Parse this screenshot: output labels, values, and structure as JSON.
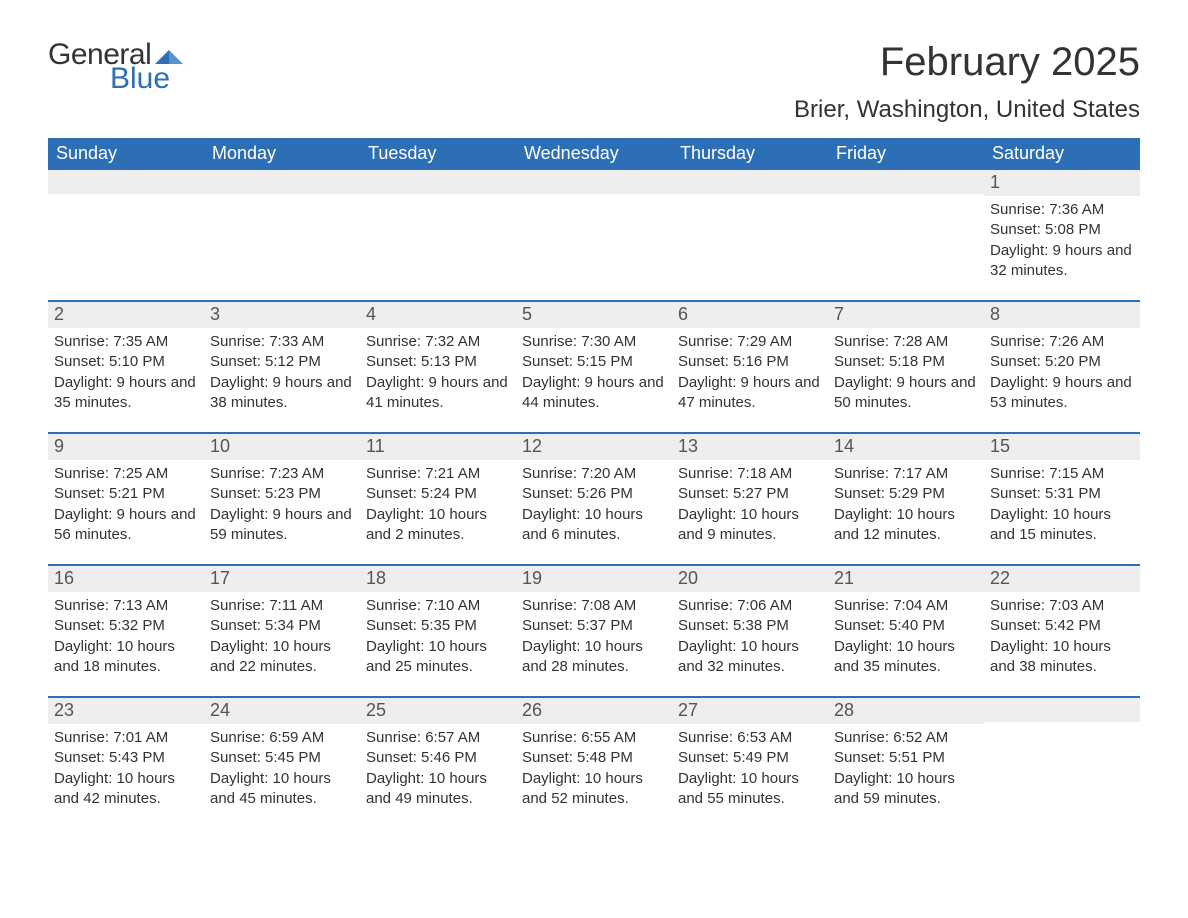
{
  "logo": {
    "text_general": "General",
    "text_blue": "Blue",
    "mark_color": "#2d6fb5"
  },
  "header": {
    "title": "February 2025",
    "subtitle": "Brier, Washington, United States"
  },
  "colors": {
    "header_row_bg": "#2d6fb5",
    "header_row_fg": "#ffffff",
    "week_separator": "#2d6fb5",
    "daynum_bg": "#eeeeee",
    "daynum_fg": "#555555",
    "body_text": "#333333",
    "page_bg": "#ffffff"
  },
  "calendar": {
    "day_names": [
      "Sunday",
      "Monday",
      "Tuesday",
      "Wednesday",
      "Thursday",
      "Friday",
      "Saturday"
    ],
    "weeks": [
      [
        {
          "day": "",
          "sunrise": "",
          "sunset": "",
          "daylight": ""
        },
        {
          "day": "",
          "sunrise": "",
          "sunset": "",
          "daylight": ""
        },
        {
          "day": "",
          "sunrise": "",
          "sunset": "",
          "daylight": ""
        },
        {
          "day": "",
          "sunrise": "",
          "sunset": "",
          "daylight": ""
        },
        {
          "day": "",
          "sunrise": "",
          "sunset": "",
          "daylight": ""
        },
        {
          "day": "",
          "sunrise": "",
          "sunset": "",
          "daylight": ""
        },
        {
          "day": "1",
          "sunrise": "Sunrise: 7:36 AM",
          "sunset": "Sunset: 5:08 PM",
          "daylight": "Daylight: 9 hours and 32 minutes."
        }
      ],
      [
        {
          "day": "2",
          "sunrise": "Sunrise: 7:35 AM",
          "sunset": "Sunset: 5:10 PM",
          "daylight": "Daylight: 9 hours and 35 minutes."
        },
        {
          "day": "3",
          "sunrise": "Sunrise: 7:33 AM",
          "sunset": "Sunset: 5:12 PM",
          "daylight": "Daylight: 9 hours and 38 minutes."
        },
        {
          "day": "4",
          "sunrise": "Sunrise: 7:32 AM",
          "sunset": "Sunset: 5:13 PM",
          "daylight": "Daylight: 9 hours and 41 minutes."
        },
        {
          "day": "5",
          "sunrise": "Sunrise: 7:30 AM",
          "sunset": "Sunset: 5:15 PM",
          "daylight": "Daylight: 9 hours and 44 minutes."
        },
        {
          "day": "6",
          "sunrise": "Sunrise: 7:29 AM",
          "sunset": "Sunset: 5:16 PM",
          "daylight": "Daylight: 9 hours and 47 minutes."
        },
        {
          "day": "7",
          "sunrise": "Sunrise: 7:28 AM",
          "sunset": "Sunset: 5:18 PM",
          "daylight": "Daylight: 9 hours and 50 minutes."
        },
        {
          "day": "8",
          "sunrise": "Sunrise: 7:26 AM",
          "sunset": "Sunset: 5:20 PM",
          "daylight": "Daylight: 9 hours and 53 minutes."
        }
      ],
      [
        {
          "day": "9",
          "sunrise": "Sunrise: 7:25 AM",
          "sunset": "Sunset: 5:21 PM",
          "daylight": "Daylight: 9 hours and 56 minutes."
        },
        {
          "day": "10",
          "sunrise": "Sunrise: 7:23 AM",
          "sunset": "Sunset: 5:23 PM",
          "daylight": "Daylight: 9 hours and 59 minutes."
        },
        {
          "day": "11",
          "sunrise": "Sunrise: 7:21 AM",
          "sunset": "Sunset: 5:24 PM",
          "daylight": "Daylight: 10 hours and 2 minutes."
        },
        {
          "day": "12",
          "sunrise": "Sunrise: 7:20 AM",
          "sunset": "Sunset: 5:26 PM",
          "daylight": "Daylight: 10 hours and 6 minutes."
        },
        {
          "day": "13",
          "sunrise": "Sunrise: 7:18 AM",
          "sunset": "Sunset: 5:27 PM",
          "daylight": "Daylight: 10 hours and 9 minutes."
        },
        {
          "day": "14",
          "sunrise": "Sunrise: 7:17 AM",
          "sunset": "Sunset: 5:29 PM",
          "daylight": "Daylight: 10 hours and 12 minutes."
        },
        {
          "day": "15",
          "sunrise": "Sunrise: 7:15 AM",
          "sunset": "Sunset: 5:31 PM",
          "daylight": "Daylight: 10 hours and 15 minutes."
        }
      ],
      [
        {
          "day": "16",
          "sunrise": "Sunrise: 7:13 AM",
          "sunset": "Sunset: 5:32 PM",
          "daylight": "Daylight: 10 hours and 18 minutes."
        },
        {
          "day": "17",
          "sunrise": "Sunrise: 7:11 AM",
          "sunset": "Sunset: 5:34 PM",
          "daylight": "Daylight: 10 hours and 22 minutes."
        },
        {
          "day": "18",
          "sunrise": "Sunrise: 7:10 AM",
          "sunset": "Sunset: 5:35 PM",
          "daylight": "Daylight: 10 hours and 25 minutes."
        },
        {
          "day": "19",
          "sunrise": "Sunrise: 7:08 AM",
          "sunset": "Sunset: 5:37 PM",
          "daylight": "Daylight: 10 hours and 28 minutes."
        },
        {
          "day": "20",
          "sunrise": "Sunrise: 7:06 AM",
          "sunset": "Sunset: 5:38 PM",
          "daylight": "Daylight: 10 hours and 32 minutes."
        },
        {
          "day": "21",
          "sunrise": "Sunrise: 7:04 AM",
          "sunset": "Sunset: 5:40 PM",
          "daylight": "Daylight: 10 hours and 35 minutes."
        },
        {
          "day": "22",
          "sunrise": "Sunrise: 7:03 AM",
          "sunset": "Sunset: 5:42 PM",
          "daylight": "Daylight: 10 hours and 38 minutes."
        }
      ],
      [
        {
          "day": "23",
          "sunrise": "Sunrise: 7:01 AM",
          "sunset": "Sunset: 5:43 PM",
          "daylight": "Daylight: 10 hours and 42 minutes."
        },
        {
          "day": "24",
          "sunrise": "Sunrise: 6:59 AM",
          "sunset": "Sunset: 5:45 PM",
          "daylight": "Daylight: 10 hours and 45 minutes."
        },
        {
          "day": "25",
          "sunrise": "Sunrise: 6:57 AM",
          "sunset": "Sunset: 5:46 PM",
          "daylight": "Daylight: 10 hours and 49 minutes."
        },
        {
          "day": "26",
          "sunrise": "Sunrise: 6:55 AM",
          "sunset": "Sunset: 5:48 PM",
          "daylight": "Daylight: 10 hours and 52 minutes."
        },
        {
          "day": "27",
          "sunrise": "Sunrise: 6:53 AM",
          "sunset": "Sunset: 5:49 PM",
          "daylight": "Daylight: 10 hours and 55 minutes."
        },
        {
          "day": "28",
          "sunrise": "Sunrise: 6:52 AM",
          "sunset": "Sunset: 5:51 PM",
          "daylight": "Daylight: 10 hours and 59 minutes."
        },
        {
          "day": "",
          "sunrise": "",
          "sunset": "",
          "daylight": ""
        }
      ]
    ]
  }
}
